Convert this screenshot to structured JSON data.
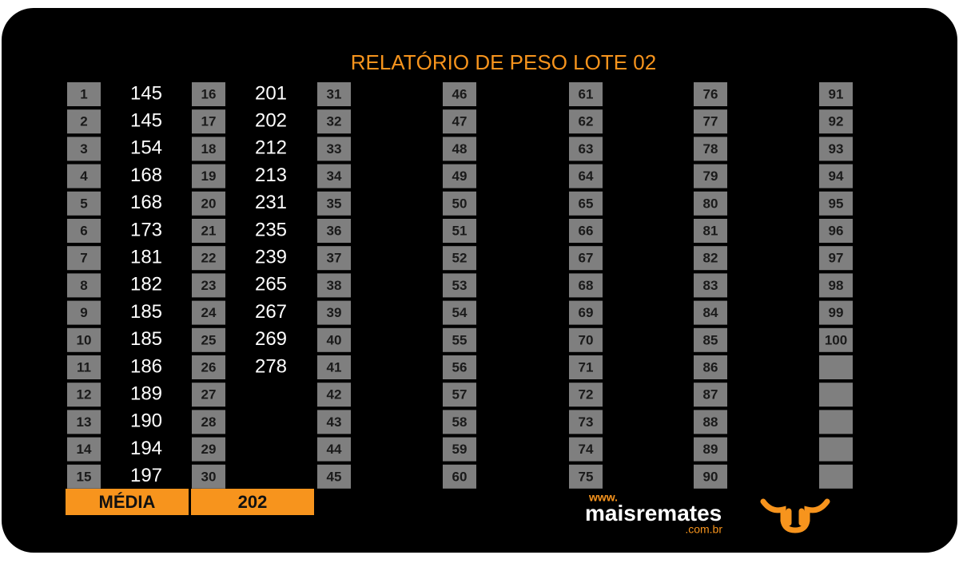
{
  "title": "RELATÓRIO DE PESO LOTE  02",
  "numbers": [
    1,
    2,
    3,
    4,
    5,
    6,
    7,
    8,
    9,
    10,
    11,
    12,
    13,
    14,
    15,
    16,
    17,
    18,
    19,
    20,
    21,
    22,
    23,
    24,
    25,
    26,
    27,
    28,
    29,
    30,
    31,
    32,
    33,
    34,
    35,
    36,
    37,
    38,
    39,
    40,
    41,
    42,
    43,
    44,
    45,
    46,
    47,
    48,
    49,
    50,
    51,
    52,
    53,
    54,
    55,
    56,
    57,
    58,
    59,
    60,
    61,
    62,
    63,
    64,
    65,
    66,
    67,
    68,
    69,
    70,
    71,
    72,
    73,
    74,
    75,
    76,
    77,
    78,
    79,
    80,
    81,
    82,
    83,
    84,
    85,
    86,
    87,
    88,
    89,
    90,
    91,
    92,
    93,
    94,
    95,
    96,
    97,
    98,
    99,
    100
  ],
  "weights": [
    145,
    145,
    154,
    168,
    168,
    173,
    181,
    182,
    185,
    185,
    186,
    189,
    190,
    194,
    197,
    201,
    202,
    212,
    213,
    231,
    235,
    239,
    265,
    267,
    269,
    278
  ],
  "footer": {
    "label": "MÉDIA",
    "average": 202
  },
  "logo": {
    "www": "www.",
    "brand_a": "mais",
    "brand_b": "remates",
    "domain": ".com.br"
  }
}
